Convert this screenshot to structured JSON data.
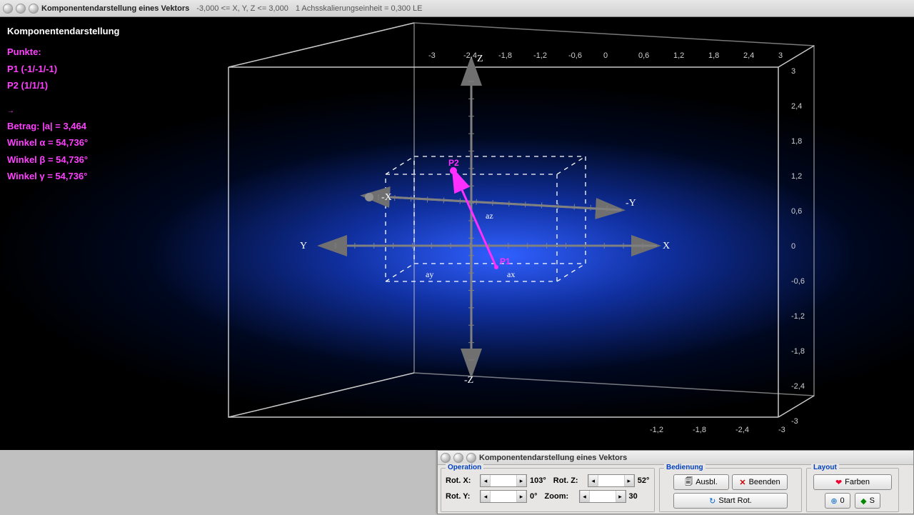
{
  "window": {
    "title": "Komponentendarstellung eines Vektors",
    "range": "-3,000 <= X, Y, Z <= 3,000",
    "scale_info": "1 Achsskalierungseinheit = 0,300 LE"
  },
  "info": {
    "heading": "Komponentendarstellung",
    "punkte_label": "Punkte:",
    "p1": "P1 (-1/-1/-1)",
    "p2": "P2 (1/1/1)",
    "betrag": "Betrag: |a| = 3,464",
    "winkel_a": "Winkel α = 54,736°",
    "winkel_b": "Winkel β = 54,736°",
    "winkel_g": "Winkel γ = 54,736°"
  },
  "diagram": {
    "axis_labels": {
      "xp": "X",
      "xn": "-X",
      "yp": "Y",
      "yn": "-Y",
      "zp": "Z",
      "zn": "-Z"
    },
    "comp_labels": {
      "ax": "ax",
      "ay": "ay",
      "az": "az"
    },
    "point_labels": {
      "p1": "P1",
      "p2": "P2"
    },
    "bounding_cube_color": "#c8c8c8",
    "dashed_color": "#ffffff",
    "axis_color": "#808080",
    "vector_color": "#ff30ff",
    "background_inner": "#3060ff",
    "background_outer": "#000000",
    "top_ticks": [
      "-3",
      "-2,4",
      "-1,8",
      "-1,2",
      "-0,6",
      "0",
      "0,6",
      "1,2",
      "1,8",
      "2,4",
      "3"
    ],
    "right_ticks": [
      "3",
      "2,4",
      "1,8",
      "1,2",
      "0,6",
      "0",
      "-0,6",
      "-1,2",
      "-1,8",
      "-2,4",
      "-3"
    ],
    "bottom_ticks": [
      "-3",
      "-2,4",
      "-1,8",
      "-1,2"
    ]
  },
  "panel": {
    "title": "Komponentendarstellung eines Vektors",
    "groups": {
      "op": "Operation",
      "bed": "Bedienung",
      "lay": "Layout"
    },
    "labels": {
      "rotx": "Rot. X:",
      "roty": "Rot. Y:",
      "rotz": "Rot. Z:",
      "zoom": "Zoom:"
    },
    "values": {
      "rotx": "103°",
      "roty": "0°",
      "rotz": "52°",
      "zoom": "30"
    },
    "buttons": {
      "ausbl": "Ausbl.",
      "beenden": "Beenden",
      "start": "Start Rot.",
      "farben": "Farben",
      "b0": "0",
      "bs": "S"
    }
  }
}
